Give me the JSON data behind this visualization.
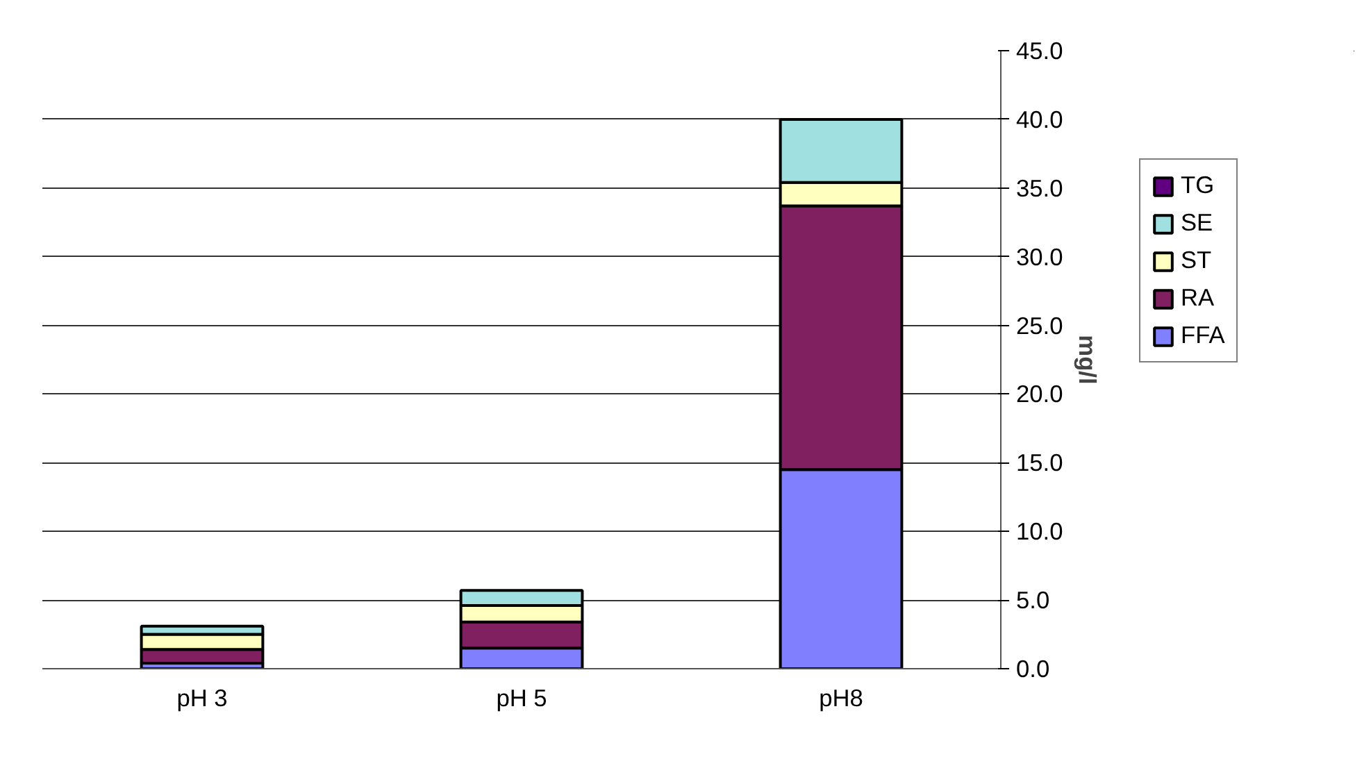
{
  "chart_data": {
    "type": "bar",
    "stacked": true,
    "categories": [
      "pH 3",
      "pH 5",
      "pH8"
    ],
    "ylabel": "mg/l",
    "ylim": [
      0,
      45
    ],
    "yticks": [
      {
        "value": 0,
        "label": "0.0"
      },
      {
        "value": 5,
        "label": "5.0"
      },
      {
        "value": 10,
        "label": "10.0"
      },
      {
        "value": 15,
        "label": "15.0"
      },
      {
        "value": 20,
        "label": "20.0"
      },
      {
        "value": 25,
        "label": "25.0"
      },
      {
        "value": 30,
        "label": "30.0"
      },
      {
        "value": 35,
        "label": "35.0"
      },
      {
        "value": 40,
        "label": "40.0"
      },
      {
        "value": 45,
        "label": "45.0"
      }
    ],
    "grid": "y",
    "legend": "right",
    "series": [
      {
        "name": "FFA",
        "color": "#8080ff",
        "values": [
          0.4,
          1.5,
          14.5
        ]
      },
      {
        "name": "RA",
        "color": "#802060",
        "values": [
          1.0,
          1.9,
          19.2
        ]
      },
      {
        "name": "ST",
        "color": "#ffffc0",
        "values": [
          1.1,
          1.2,
          1.7
        ]
      },
      {
        "name": "SE",
        "color": "#a0e0e0",
        "values": [
          0.6,
          1.1,
          4.6
        ]
      },
      {
        "name": "TG",
        "color": "#600080",
        "values": [
          0,
          0,
          0
        ]
      }
    ]
  }
}
